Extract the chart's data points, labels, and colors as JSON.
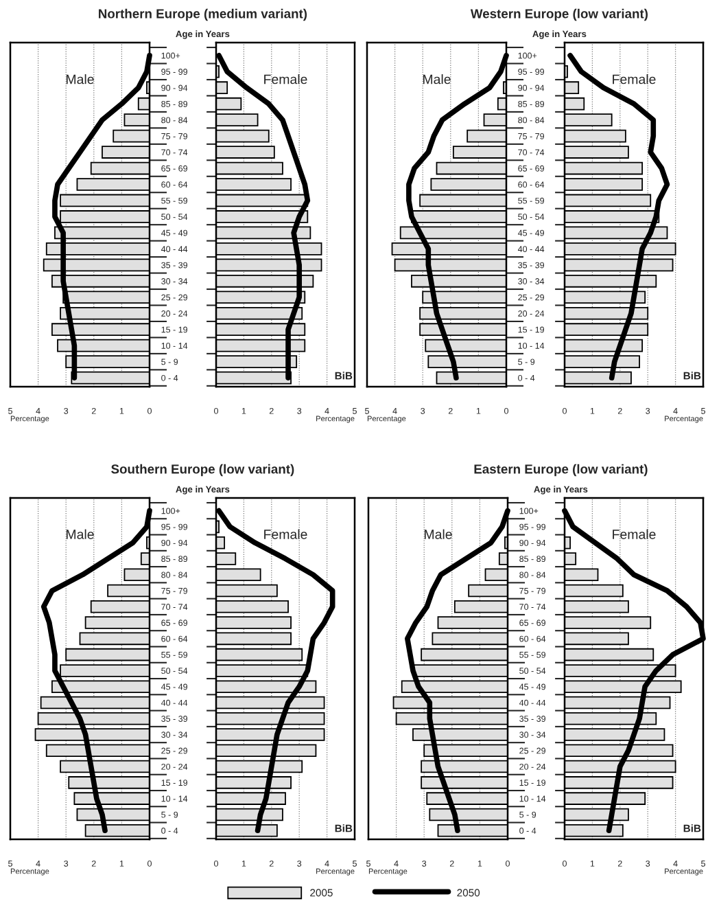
{
  "chart_data": [
    {
      "type": "bar",
      "orientation": "horizontal",
      "title": "Northern Europe (medium variant)",
      "ylabel": "Age in Years",
      "xlabel": "Percentage",
      "categories": [
        "100+",
        "95 - 99",
        "90 - 94",
        "85 - 89",
        "80 - 84",
        "75 - 79",
        "70 - 74",
        "65 - 69",
        "60 - 64",
        "55 - 59",
        "50 - 54",
        "45 - 49",
        "40 - 44",
        "35 - 39",
        "30 - 34",
        "25 - 29",
        "20 - 24",
        "15 - 19",
        "10 - 14",
        "5 - 9",
        "0 - 4"
      ],
      "xlim": [
        5,
        0
      ],
      "xticks": [
        5,
        4,
        3,
        2,
        1,
        0
      ],
      "grid": "x",
      "annotations": [
        "Male"
      ],
      "legend": "bottom",
      "series": [
        {
          "name": "2005",
          "color": "#e0e0e0",
          "values": [
            null,
            null,
            0.1,
            0.4,
            0.9,
            1.3,
            1.7,
            2.1,
            2.6,
            3.2,
            3.2,
            3.4,
            3.7,
            3.8,
            3.5,
            3.1,
            3.2,
            3.5,
            3.3,
            3.0,
            2.8
          ]
        },
        {
          "name": "2050",
          "type": "line",
          "color": "#000000",
          "values": [
            0.0,
            0.1,
            0.4,
            1.0,
            1.7,
            2.1,
            2.5,
            2.9,
            3.3,
            3.4,
            3.4,
            3.1,
            3.1,
            3.1,
            3.1,
            3.0,
            2.9,
            2.8,
            2.7,
            2.7,
            2.7
          ]
        }
      ]
    },
    {
      "type": "bar",
      "orientation": "horizontal",
      "xlabel": "Percentage",
      "categories": [
        null,
        null,
        null,
        null,
        null,
        null,
        null,
        null,
        null,
        null,
        null,
        null,
        null,
        null,
        null,
        null,
        null,
        null,
        null,
        null,
        null
      ],
      "xlim": [
        0,
        5
      ],
      "xticks": [
        0,
        1,
        2,
        3,
        4,
        5
      ],
      "grid": "x",
      "tick_labels": "x",
      "annotations": [
        "Female",
        "BiB"
      ],
      "series": [
        {
          "color": "#e0e0e0",
          "values": [
            null,
            0.1,
            0.4,
            0.9,
            1.5,
            1.9,
            2.1,
            2.4,
            2.7,
            3.3,
            3.3,
            3.4,
            3.8,
            3.8,
            3.5,
            3.2,
            3.1,
            3.2,
            3.2,
            2.9,
            2.7
          ]
        },
        {
          "type": "line",
          "color": "#000000",
          "values": [
            0.1,
            0.4,
            1.1,
            1.9,
            2.4,
            2.6,
            2.8,
            3.0,
            3.2,
            3.3,
            3.0,
            2.8,
            2.9,
            3.0,
            3.0,
            3.0,
            2.8,
            2.6,
            2.6,
            2.6,
            2.6
          ]
        }
      ]
    },
    {
      "type": "bar",
      "orientation": "horizontal",
      "title": "Western Europe (low variant)",
      "ylabel": "Age in Years",
      "xlabel": "Percentage",
      "categories": [
        "100+",
        "95 - 99",
        "90 - 94",
        "85 - 89",
        "80 - 84",
        "75 - 79",
        "70 - 74",
        "65 - 69",
        "60 - 64",
        "55 - 59",
        "50 - 54",
        "45 - 49",
        "40 - 44",
        "35 - 39",
        "30 - 34",
        "25 - 29",
        "20 - 24",
        "15 - 19",
        "10 - 14",
        "5 - 9",
        "0 - 4"
      ],
      "xlim": [
        5,
        0
      ],
      "xticks": [
        5,
        4,
        3,
        2,
        1,
        0
      ],
      "grid": "x",
      "annotations": [
        "Male"
      ],
      "series": [
        {
          "color": "#e0e0e0",
          "values": [
            null,
            null,
            0.1,
            0.3,
            0.8,
            1.4,
            1.9,
            2.5,
            2.7,
            3.1,
            3.4,
            3.8,
            4.1,
            4.0,
            3.4,
            3.0,
            3.1,
            3.1,
            2.9,
            2.8,
            2.5
          ]
        },
        {
          "type": "line",
          "color": "#000000",
          "values": [
            0.0,
            0.2,
            0.6,
            1.5,
            2.3,
            2.6,
            2.8,
            3.3,
            3.5,
            3.5,
            3.4,
            3.1,
            2.8,
            2.8,
            2.7,
            2.6,
            2.5,
            2.3,
            2.1,
            1.9,
            1.8
          ]
        }
      ]
    },
    {
      "type": "bar",
      "orientation": "horizontal",
      "xlabel": "Percentage",
      "categories": [
        null,
        null,
        null,
        null,
        null,
        null,
        null,
        null,
        null,
        null,
        null,
        null,
        null,
        null,
        null,
        null,
        null,
        null,
        null,
        null,
        null
      ],
      "xlim": [
        0,
        5
      ],
      "xticks": [
        0,
        1,
        2,
        3,
        4,
        5
      ],
      "grid": "x",
      "tick_labels": "x",
      "annotations": [
        "Female",
        "BiB"
      ],
      "series": [
        {
          "color": "#e0e0e0",
          "values": [
            null,
            0.1,
            0.5,
            0.7,
            1.7,
            2.2,
            2.3,
            2.8,
            2.8,
            3.1,
            3.4,
            3.7,
            4.0,
            3.9,
            3.3,
            2.9,
            3.0,
            3.0,
            2.8,
            2.7,
            2.4
          ]
        },
        {
          "type": "line",
          "color": "#000000",
          "values": [
            0.2,
            0.6,
            1.4,
            2.5,
            3.2,
            3.2,
            3.1,
            3.5,
            3.7,
            3.4,
            3.3,
            3.1,
            2.8,
            2.7,
            2.6,
            2.5,
            2.4,
            2.2,
            2.0,
            1.8,
            1.7
          ]
        }
      ]
    },
    {
      "type": "bar",
      "orientation": "horizontal",
      "title": "Southern Europe (low variant)",
      "ylabel": "Age in Years",
      "xlabel": "Percentage",
      "categories": [
        "100+",
        "95 - 99",
        "90 - 94",
        "85 - 89",
        "80 - 84",
        "75 - 79",
        "70 - 74",
        "65 - 69",
        "60 - 64",
        "55 - 59",
        "50 - 54",
        "45 - 49",
        "40 - 44",
        "35 - 39",
        "30 - 34",
        "25 - 29",
        "20 - 24",
        "15 - 19",
        "10 - 14",
        "5 - 9",
        "0 - 4"
      ],
      "xlim": [
        5,
        0
      ],
      "xticks": [
        5,
        4,
        3,
        2,
        1,
        0
      ],
      "grid": "x",
      "annotations": [
        "Male"
      ],
      "series": [
        {
          "color": "#e0e0e0",
          "values": [
            null,
            null,
            0.1,
            0.3,
            0.9,
            1.5,
            2.1,
            2.3,
            2.5,
            3.0,
            3.2,
            3.5,
            3.9,
            4.0,
            4.1,
            3.7,
            3.2,
            2.9,
            2.7,
            2.6,
            2.3
          ]
        },
        {
          "type": "line",
          "color": "#000000",
          "values": [
            0.0,
            0.1,
            0.6,
            1.5,
            2.4,
            3.5,
            3.8,
            3.6,
            3.5,
            3.4,
            3.4,
            3.1,
            2.8,
            2.5,
            2.3,
            2.2,
            2.1,
            2.0,
            1.9,
            1.7,
            1.6
          ]
        }
      ]
    },
    {
      "type": "bar",
      "orientation": "horizontal",
      "xlabel": "Percentage",
      "categories": [
        null,
        null,
        null,
        null,
        null,
        null,
        null,
        null,
        null,
        null,
        null,
        null,
        null,
        null,
        null,
        null,
        null,
        null,
        null,
        null,
        null
      ],
      "xlim": [
        0,
        5
      ],
      "xticks": [
        0,
        1,
        2,
        3,
        4,
        5
      ],
      "grid": "x",
      "tick_labels": "x",
      "annotations": [
        "Female",
        "BiB"
      ],
      "series": [
        {
          "color": "#e0e0e0",
          "values": [
            null,
            0.1,
            0.3,
            0.7,
            1.6,
            2.2,
            2.6,
            2.7,
            2.7,
            3.1,
            3.3,
            3.6,
            3.9,
            3.9,
            3.9,
            3.6,
            3.1,
            2.7,
            2.5,
            2.4,
            2.2
          ]
        },
        {
          "type": "line",
          "color": "#000000",
          "values": [
            0.1,
            0.5,
            1.4,
            2.5,
            3.5,
            4.2,
            4.2,
            3.9,
            3.5,
            3.4,
            3.3,
            3.0,
            2.6,
            2.4,
            2.2,
            2.1,
            2.0,
            1.9,
            1.8,
            1.6,
            1.5
          ]
        }
      ]
    },
    {
      "type": "bar",
      "orientation": "horizontal",
      "title": "Eastern Europe (low variant)",
      "ylabel": "Age in Years",
      "xlabel": "Percentage",
      "categories": [
        "100+",
        "95 - 99",
        "90 - 94",
        "85 - 89",
        "80 - 84",
        "75 - 79",
        "70 - 74",
        "65 - 69",
        "60 - 64",
        "55 - 59",
        "50 - 54",
        "45 - 49",
        "40 - 44",
        "35 - 39",
        "30 - 34",
        "25 - 29",
        "20 - 24",
        "15 - 19",
        "10 - 14",
        "5 - 9",
        "0 - 4"
      ],
      "xlim": [
        5,
        0
      ],
      "xticks": [
        5,
        4,
        3,
        2,
        1,
        0
      ],
      "grid": "x",
      "annotations": [
        "Male"
      ],
      "series": [
        {
          "color": "#e0e0e0",
          "values": [
            null,
            null,
            0.1,
            0.3,
            0.8,
            1.4,
            1.9,
            2.5,
            2.7,
            3.1,
            3.4,
            3.8,
            4.1,
            4.0,
            3.4,
            3.0,
            3.1,
            3.1,
            2.9,
            2.8,
            2.5
          ]
        },
        {
          "type": "line",
          "color": "#000000",
          "values": [
            0.0,
            0.2,
            0.6,
            1.5,
            2.4,
            2.7,
            2.9,
            3.3,
            3.6,
            3.5,
            3.4,
            3.2,
            2.8,
            2.8,
            2.7,
            2.6,
            2.5,
            2.3,
            2.1,
            1.9,
            1.8
          ]
        }
      ]
    },
    {
      "type": "bar",
      "orientation": "horizontal",
      "xlabel": "Percentage",
      "categories": [
        null,
        null,
        null,
        null,
        null,
        null,
        null,
        null,
        null,
        null,
        null,
        null,
        null,
        null,
        null,
        null,
        null,
        null,
        null,
        null,
        null
      ],
      "xlim": [
        0,
        5
      ],
      "xticks": [
        0,
        1,
        2,
        3,
        4,
        5
      ],
      "grid": "x",
      "tick_labels": "x",
      "annotations": [
        "Female",
        "BiB"
      ],
      "series": [
        {
          "color": "#e0e0e0",
          "values": [
            null,
            null,
            0.2,
            0.4,
            1.2,
            2.1,
            2.3,
            3.1,
            2.3,
            3.2,
            4.0,
            4.2,
            3.8,
            3.3,
            3.6,
            3.9,
            4.0,
            3.9,
            2.9,
            2.3,
            2.1
          ]
        },
        {
          "type": "line",
          "color": "#000000",
          "values": [
            0.0,
            0.3,
            1.1,
            1.9,
            2.5,
            3.7,
            4.4,
            4.9,
            5.0,
            3.9,
            3.3,
            2.9,
            2.8,
            2.7,
            2.5,
            2.3,
            2.0,
            1.9,
            1.8,
            1.7,
            1.6
          ]
        }
      ]
    }
  ]
}
